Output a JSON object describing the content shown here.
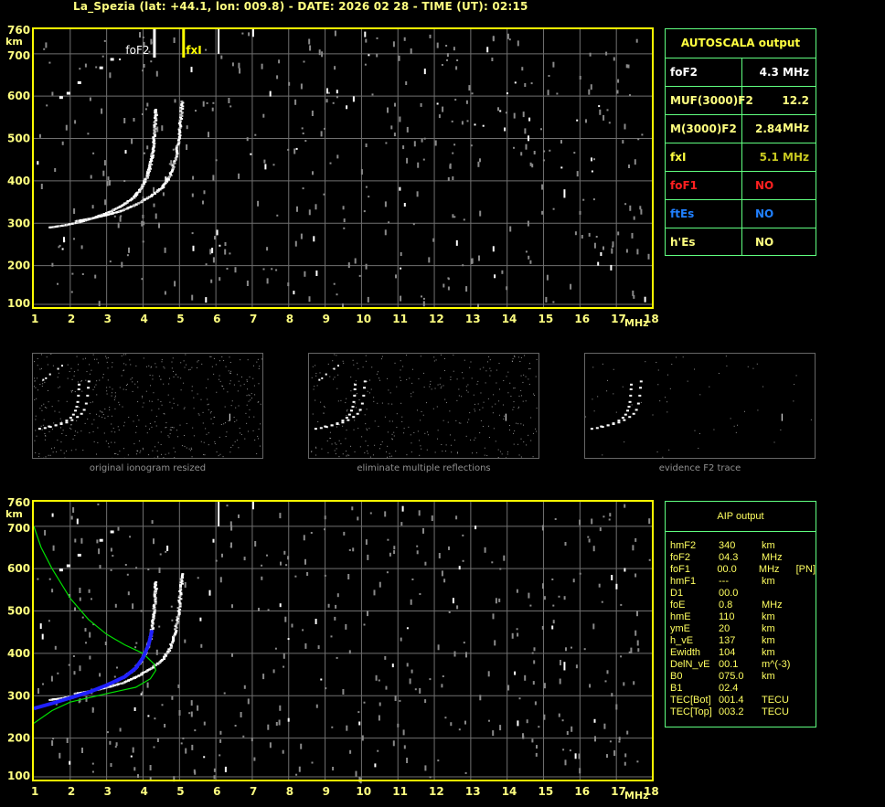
{
  "header": {
    "title": "La_Spezia (lat: +44.1, lon: 009.8) - DATE: 2026 02 28 - TIME (UT): 02:15"
  },
  "colors": {
    "axis": "#ffff00",
    "grid": "#707070",
    "table_border": "#60ff80",
    "trace": "#ffffff",
    "fit_profile": "#00e000",
    "fit_trace": "#2020ff"
  },
  "autoscala": {
    "title": "AUTOSCALA output",
    "rows": [
      {
        "key": "foF2",
        "value": "4.3 MHz",
        "kcolor": "#ffffff",
        "vcolor": "#ffffff"
      },
      {
        "key": "MUF(3000)F2",
        "value": "12.2 MHz",
        "kcolor": "#ffff80",
        "vcolor": "#ffff80"
      },
      {
        "key": "M(3000)F2",
        "value": "2.84",
        "kcolor": "#ffff80",
        "vcolor": "#ffff80"
      },
      {
        "key": "fxI",
        "value": "5.1 MHz",
        "kcolor": "#ffff40",
        "vcolor": "#c8c820"
      },
      {
        "key": "foF1",
        "value": "NO",
        "kcolor": "#ff2020",
        "vcolor": "#ff2020"
      },
      {
        "key": "ftEs",
        "value": "NO",
        "kcolor": "#2080ff",
        "vcolor": "#2080ff"
      },
      {
        "key": "h'Es",
        "value": "NO",
        "kcolor": "#ffff80",
        "vcolor": "#ffff80"
      }
    ]
  },
  "aip": {
    "title": "AIP output",
    "rows": [
      [
        "hmF2",
        "340",
        "km",
        ""
      ],
      [
        "foF2",
        "04.3",
        "MHz",
        ""
      ],
      [
        "foF1",
        "00.0",
        "MHz",
        "[PN]"
      ],
      [
        "hmF1",
        "---",
        "km",
        ""
      ],
      [
        "D1",
        "00.0",
        "",
        ""
      ],
      [
        "foE",
        "0.8",
        "MHz",
        ""
      ],
      [
        "hmE",
        "110",
        "km",
        ""
      ],
      [
        "ymE",
        "20",
        "km",
        ""
      ],
      [
        "h_vE",
        "137",
        "km",
        ""
      ],
      [
        "Ewidth",
        "104",
        "km",
        ""
      ],
      [
        "DelN_vE",
        "00.1",
        "m^(-3)",
        ""
      ],
      [
        "B0",
        "075.0",
        "km",
        ""
      ],
      [
        "B1",
        "02.4",
        "",
        ""
      ],
      [
        "TEC[Bot]",
        "001.4",
        "TECU",
        ""
      ],
      [
        "TEC[Top]",
        "003.2",
        "TECU",
        ""
      ]
    ]
  },
  "thumbnails": [
    {
      "label": "original ionogram resized"
    },
    {
      "label": "eliminate multiple reflections"
    },
    {
      "label": "evidence F2 trace"
    }
  ],
  "chart_data": [
    {
      "type": "scatter",
      "xlabel": "MHz",
      "ylabel": "km",
      "xlim": [
        1,
        18
      ],
      "ylim": [
        100,
        760
      ],
      "xticks": [
        "1",
        "2",
        "3",
        "4",
        "5",
        "6",
        "7",
        "8",
        "9",
        "10",
        "11",
        "12",
        "13",
        "14",
        "15",
        "16",
        "17",
        "18"
      ],
      "yticks": [
        "100",
        "200",
        "300",
        "400",
        "500",
        "600",
        "700",
        "760"
      ],
      "grid": true,
      "markers": [
        {
          "label": "foF2",
          "x": 4.3
        },
        {
          "label": "fxI",
          "x": 5.1
        }
      ],
      "o_trace": [
        [
          1.4,
          290
        ],
        [
          1.8,
          295
        ],
        [
          2.2,
          302
        ],
        [
          2.6,
          312
        ],
        [
          3.0,
          325
        ],
        [
          3.4,
          342
        ],
        [
          3.7,
          360
        ],
        [
          3.9,
          380
        ],
        [
          4.05,
          405
        ],
        [
          4.15,
          430
        ],
        [
          4.22,
          460
        ],
        [
          4.27,
          500
        ],
        [
          4.3,
          540
        ],
        [
          4.32,
          570
        ]
      ],
      "x_trace": [
        [
          2.1,
          305
        ],
        [
          2.6,
          312
        ],
        [
          3.0,
          320
        ],
        [
          3.4,
          330
        ],
        [
          3.8,
          345
        ],
        [
          4.2,
          365
        ],
        [
          4.5,
          385
        ],
        [
          4.7,
          410
        ],
        [
          4.85,
          450
        ],
        [
          4.95,
          500
        ],
        [
          5.0,
          550
        ],
        [
          5.05,
          590
        ]
      ],
      "multi_hop": [
        [
          1.7,
          600
        ],
        [
          1.9,
          610
        ],
        [
          2.2,
          635
        ],
        [
          2.8,
          670
        ],
        [
          3.1,
          690
        ]
      ]
    },
    {
      "type": "line",
      "xlabel": "MHz",
      "ylabel": "km",
      "xlim": [
        1,
        18
      ],
      "ylim": [
        100,
        760
      ],
      "xticks": [
        "1",
        "2",
        "3",
        "4",
        "5",
        "6",
        "7",
        "8",
        "9",
        "10",
        "11",
        "12",
        "13",
        "14",
        "15",
        "16",
        "17",
        "18"
      ],
      "yticks": [
        "100",
        "200",
        "300",
        "400",
        "500",
        "600",
        "700",
        "760"
      ],
      "grid": true,
      "series": [
        {
          "color": "#00e000",
          "values": [
            [
              1,
              700
            ],
            [
              1.2,
              650
            ],
            [
              1.5,
              600
            ],
            [
              2,
              530
            ],
            [
              2.5,
              480
            ],
            [
              3,
              445
            ],
            [
              3.5,
              420
            ],
            [
              4,
              400
            ],
            [
              4.3,
              375
            ],
            [
              4.35,
              360
            ],
            [
              4.2,
              340
            ],
            [
              3.8,
              320
            ],
            [
              3,
              305
            ],
            [
              2,
              285
            ],
            [
              1.5,
              265
            ],
            [
              1,
              235
            ]
          ]
        },
        {
          "color": "#2020ff",
          "values": [
            [
              1,
              270
            ],
            [
              1.5,
              282
            ],
            [
              2,
              295
            ],
            [
              2.5,
              308
            ],
            [
              3,
              325
            ],
            [
              3.5,
              345
            ],
            [
              3.8,
              365
            ],
            [
              4.0,
              390
            ],
            [
              4.15,
              420
            ],
            [
              4.25,
              455
            ]
          ]
        }
      ],
      "o_trace": [
        [
          1.4,
          290
        ],
        [
          1.8,
          295
        ],
        [
          2.2,
          302
        ],
        [
          2.6,
          312
        ],
        [
          3.0,
          325
        ],
        [
          3.4,
          342
        ],
        [
          3.7,
          360
        ],
        [
          3.9,
          380
        ],
        [
          4.05,
          405
        ],
        [
          4.15,
          430
        ],
        [
          4.22,
          460
        ],
        [
          4.27,
          500
        ],
        [
          4.3,
          540
        ],
        [
          4.32,
          570
        ]
      ],
      "x_trace": [
        [
          2.1,
          305
        ],
        [
          2.6,
          312
        ],
        [
          3.0,
          320
        ],
        [
          3.4,
          330
        ],
        [
          3.8,
          345
        ],
        [
          4.2,
          365
        ],
        [
          4.5,
          385
        ],
        [
          4.7,
          410
        ],
        [
          4.85,
          450
        ],
        [
          4.95,
          500
        ],
        [
          5.0,
          550
        ],
        [
          5.05,
          590
        ]
      ],
      "multi_hop": [
        [
          1.7,
          600
        ],
        [
          1.9,
          610
        ],
        [
          2.2,
          635
        ],
        [
          2.8,
          670
        ],
        [
          3.1,
          690
        ]
      ]
    }
  ]
}
